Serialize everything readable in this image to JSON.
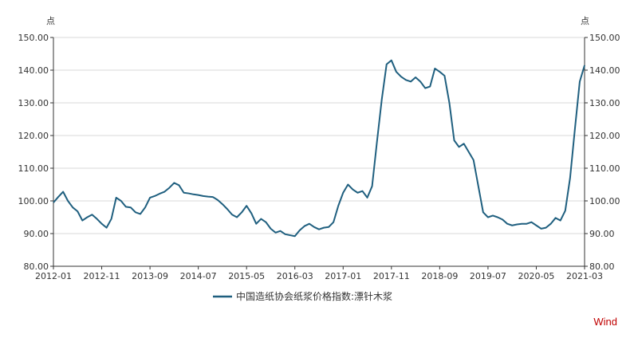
{
  "brand": {
    "label": "Wind",
    "color": "#c00000"
  },
  "chart_data": {
    "type": "line",
    "left_axis_unit": "点",
    "right_axis_unit": "点",
    "ylim": [
      80,
      150
    ],
    "y_ticks": [
      "80.00",
      "90.00",
      "100.00",
      "110.00",
      "120.00",
      "130.00",
      "140.00",
      "150.00"
    ],
    "x_tick_labels": [
      "2012-01",
      "2012-11",
      "2013-09",
      "2014-07",
      "2015-05",
      "2016-03",
      "2017-01",
      "2017-11",
      "2018-09",
      "2019-07",
      "2020-05",
      "2021-03"
    ],
    "grid": "horizontal",
    "legend_position": "bottom",
    "colors": {
      "line": "#1f5f7f",
      "grid": "#d9d9d9",
      "axis": "#333333"
    },
    "series": [
      {
        "name": "中国造纸协会纸浆价格指数:漂针木浆",
        "x": [
          "2012-01",
          "2012-02",
          "2012-03",
          "2012-04",
          "2012-05",
          "2012-06",
          "2012-07",
          "2012-08",
          "2012-09",
          "2012-10",
          "2012-11",
          "2012-12",
          "2013-01",
          "2013-02",
          "2013-03",
          "2013-04",
          "2013-05",
          "2013-06",
          "2013-07",
          "2013-08",
          "2013-09",
          "2013-10",
          "2013-11",
          "2013-12",
          "2014-01",
          "2014-02",
          "2014-03",
          "2014-04",
          "2014-05",
          "2014-06",
          "2014-07",
          "2014-08",
          "2014-09",
          "2014-10",
          "2014-11",
          "2014-12",
          "2015-01",
          "2015-02",
          "2015-03",
          "2015-04",
          "2015-05",
          "2015-06",
          "2015-07",
          "2015-08",
          "2015-09",
          "2015-10",
          "2015-11",
          "2015-12",
          "2016-01",
          "2016-02",
          "2016-03",
          "2016-04",
          "2016-05",
          "2016-06",
          "2016-07",
          "2016-08",
          "2016-09",
          "2016-10",
          "2016-11",
          "2016-12",
          "2017-01",
          "2017-02",
          "2017-03",
          "2017-04",
          "2017-05",
          "2017-06",
          "2017-07",
          "2017-08",
          "2017-09",
          "2017-10",
          "2017-11",
          "2017-12",
          "2018-01",
          "2018-02",
          "2018-03",
          "2018-04",
          "2018-05",
          "2018-06",
          "2018-07",
          "2018-08",
          "2018-09",
          "2018-10",
          "2018-11",
          "2018-12",
          "2019-01",
          "2019-02",
          "2019-03",
          "2019-04",
          "2019-05",
          "2019-06",
          "2019-07",
          "2019-08",
          "2019-09",
          "2019-10",
          "2019-11",
          "2019-12",
          "2020-01",
          "2020-02",
          "2020-03",
          "2020-04",
          "2020-05",
          "2020-06",
          "2020-07",
          "2020-08",
          "2020-09",
          "2020-10",
          "2020-11",
          "2020-12",
          "2021-01",
          "2021-02",
          "2021-03"
        ],
        "values": [
          99.5,
          101.2,
          102.8,
          100.0,
          98.0,
          96.8,
          94.0,
          95.0,
          95.8,
          94.5,
          93.0,
          91.8,
          94.5,
          101.0,
          100.0,
          98.2,
          98.0,
          96.5,
          96.0,
          98.0,
          101.0,
          101.5,
          102.2,
          102.8,
          104.0,
          105.5,
          104.8,
          102.5,
          102.3,
          102.0,
          101.8,
          101.5,
          101.3,
          101.2,
          100.3,
          99.0,
          97.5,
          95.8,
          95.0,
          96.5,
          98.5,
          96.2,
          93.0,
          94.5,
          93.5,
          91.5,
          90.3,
          90.8,
          89.8,
          89.5,
          89.2,
          91.0,
          92.3,
          93.0,
          92.0,
          91.3,
          91.8,
          92.0,
          93.5,
          98.5,
          102.5,
          105.0,
          103.5,
          102.5,
          103.0,
          101.0,
          104.5,
          118.0,
          131.0,
          141.8,
          143.0,
          139.5,
          138.0,
          137.0,
          136.5,
          137.8,
          136.5,
          134.5,
          135.0,
          140.5,
          139.5,
          138.3,
          130.0,
          118.5,
          116.5,
          117.5,
          115.0,
          112.5,
          104.5,
          96.5,
          95.0,
          95.5,
          95.0,
          94.3,
          93.0,
          92.5,
          92.8,
          93.0,
          93.0,
          93.5,
          92.5,
          91.5,
          91.8,
          93.0,
          94.8,
          94.0,
          97.0,
          107.0,
          122.0,
          136.5,
          141.5
        ]
      }
    ]
  }
}
